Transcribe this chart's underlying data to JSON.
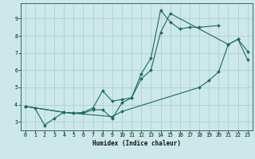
{
  "xlabel": "Humidex (Indice chaleur)",
  "bg_color": "#cde8e8",
  "grid_color": "#b0d0d0",
  "line_color": "#1a6b5a",
  "spine_color": "#336666",
  "xlim": [
    -0.5,
    23.5
  ],
  "ylim": [
    2.5,
    9.9
  ],
  "xticks": [
    0,
    1,
    2,
    3,
    4,
    5,
    6,
    7,
    8,
    9,
    10,
    11,
    12,
    13,
    14,
    15,
    16,
    17,
    18,
    19,
    20,
    21,
    22,
    23
  ],
  "yticks": [
    3,
    4,
    5,
    6,
    7,
    8,
    9
  ],
  "line1_x": [
    0,
    1,
    2,
    3,
    4,
    5,
    6,
    7,
    8,
    9,
    10,
    11,
    12,
    13,
    14,
    15,
    16,
    17,
    18,
    20
  ],
  "line1_y": [
    3.9,
    3.8,
    2.8,
    3.2,
    3.55,
    3.5,
    3.5,
    3.7,
    3.7,
    3.2,
    4.1,
    4.4,
    5.8,
    6.7,
    9.5,
    8.8,
    8.4,
    8.5,
    8.5,
    8.6
  ],
  "line2_x": [
    0,
    4,
    5,
    6,
    7,
    8,
    9,
    10,
    11,
    12,
    13,
    14,
    15,
    21,
    22,
    23
  ],
  "line2_y": [
    3.9,
    3.55,
    3.5,
    3.55,
    3.8,
    4.8,
    4.2,
    4.3,
    4.4,
    5.5,
    6.0,
    8.2,
    9.3,
    7.5,
    7.8,
    7.1
  ],
  "line3_x": [
    0,
    4,
    9,
    10,
    18,
    19,
    20,
    21,
    22,
    23
  ],
  "line3_y": [
    3.9,
    3.55,
    3.3,
    3.6,
    5.0,
    5.4,
    5.9,
    7.5,
    7.8,
    6.6
  ]
}
